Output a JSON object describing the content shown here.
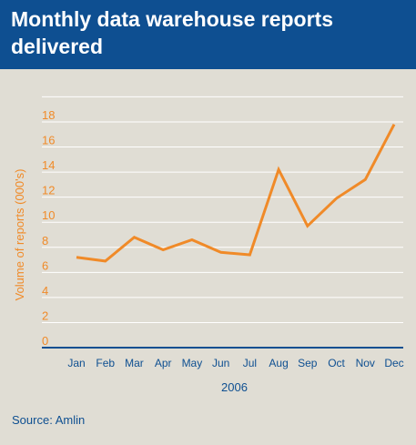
{
  "header": {
    "title": "Monthly data warehouse reports delivered"
  },
  "source": "Source: Amlin",
  "colors": {
    "header_bg": "#0e4f91",
    "background": "#e0ddd4",
    "line": "#f08a28",
    "axis_text": "#f08a28",
    "category_text": "#0e4f91",
    "gridline": "#ffffff",
    "baseline": "#0e4f91"
  },
  "chart_data": {
    "type": "line",
    "title": "Monthly data warehouse reports delivered",
    "xlabel": "2006",
    "ylabel": "Volume of reports (000's)",
    "categories": [
      "Jan",
      "Feb",
      "Mar",
      "Apr",
      "May",
      "Jun",
      "Jul",
      "Aug",
      "Sep",
      "Oct",
      "Nov",
      "Dec"
    ],
    "series": [
      {
        "values": [
          7.2,
          6.9,
          8.8,
          7.8,
          8.6,
          7.6,
          7.4,
          14.2,
          9.7,
          11.9,
          13.4,
          17.8
        ]
      }
    ],
    "ylim": [
      0,
      19
    ],
    "yticks": [
      0,
      2,
      4,
      6,
      8,
      10,
      12,
      14,
      16,
      18
    ],
    "grid": true,
    "legend": "none"
  }
}
